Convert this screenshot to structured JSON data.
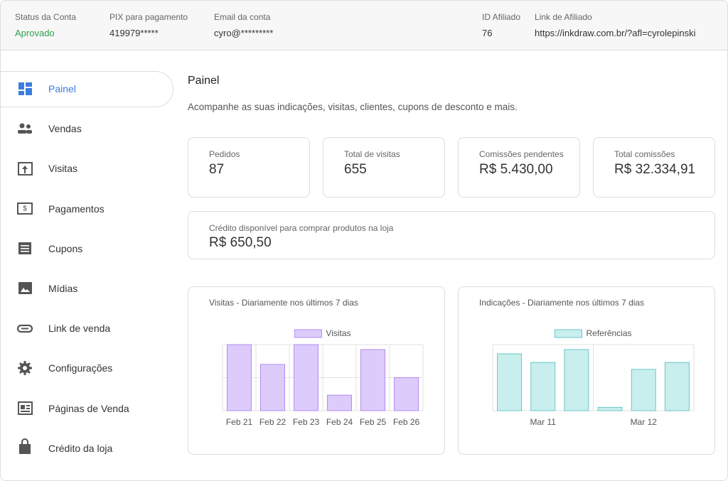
{
  "header": {
    "fields": [
      {
        "label": "Status da Conta",
        "value": "Aprovado"
      },
      {
        "label": "PIX para pagamento",
        "value": "419979*****"
      },
      {
        "label": "Email da conta",
        "value": "cyro@*********"
      },
      {
        "label": "ID Afiliado",
        "value": "76"
      },
      {
        "label": "Link de Afiliado",
        "value": "https://inkdraw.com.br/?afl=cyrolepinski"
      }
    ]
  },
  "sidebar": {
    "active": 0,
    "items": [
      "Painel",
      "Vendas",
      "Visitas",
      "Pagamentos",
      "Cupons",
      "Mídias",
      "Link de venda",
      "Configurações",
      "Páginas de Venda",
      "Crédito da loja"
    ]
  },
  "main": {
    "title": "Painel",
    "subtitle": "Acompanhe as suas indicações, visitas, clientes, cupons de desconto e mais.",
    "stats": [
      {
        "label": "Pedidos",
        "value": "87"
      },
      {
        "label": "Total de visitas",
        "value": "655"
      },
      {
        "label": "Comissões pendentes",
        "value": "R$ 5.430,00"
      },
      {
        "label": "Total comissões",
        "value": "R$ 32.334,91"
      }
    ],
    "credit": {
      "label": "Crédito disponível para comprar produtos na loja",
      "value": "R$ 650,50"
    }
  },
  "chart_data": [
    {
      "type": "bar",
      "title": "Visitas - Diariamente nos últimos 7 dias",
      "categories": [
        "Feb 21",
        "Feb 22",
        "Feb 23",
        "Feb 24",
        "Feb 25",
        "Feb 26"
      ],
      "series": [
        {
          "name": "Visitas",
          "color": "#dccbfb",
          "border": "#b48cf0",
          "values": [
            2,
            1.4,
            2,
            0.47,
            1.85,
            1
          ]
        }
      ],
      "ylim": [
        0,
        2
      ],
      "yticks": [
        0,
        1,
        2
      ],
      "grid": true
    },
    {
      "type": "bar",
      "title": "Indicações - Diariamente nos últimos 7 dias",
      "categories": [
        null,
        "Mar 11",
        null,
        null,
        "Mar 12",
        null
      ],
      "series": [
        {
          "name": "Referências",
          "color": "#c9eeee",
          "border": "#6cc6c6",
          "values": [
            1.72,
            1.46,
            1.85,
            0.1,
            1.25,
            1.46
          ]
        }
      ],
      "ylim": [
        0,
        2
      ],
      "yticks": [
        0,
        2
      ],
      "grid": false
    }
  ]
}
